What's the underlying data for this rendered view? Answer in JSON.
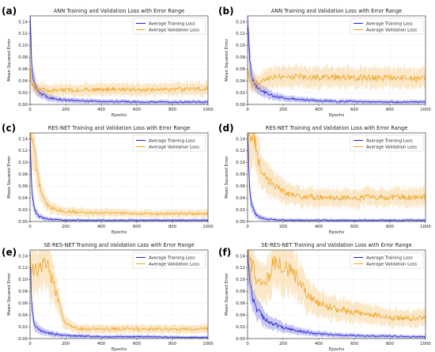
{
  "colors": {
    "training": "#1f1fd6",
    "validation": "#f0a526"
  },
  "chart_data": [
    {
      "type": "line",
      "letter": "(a)",
      "title": "ANN Training and Validation Loss with Error Range",
      "xlabel": "Epochs",
      "ylabel": "Mean Squared Error",
      "xlim": [
        0,
        1000
      ],
      "ylim": [
        0,
        0.15
      ],
      "xticks": [
        "0",
        "200",
        "400",
        "600",
        "800",
        "1000"
      ],
      "yticks": [
        "0.00",
        "0.02",
        "0.04",
        "0.06",
        "0.08",
        "0.10",
        "0.12",
        "0.14"
      ],
      "legend": "top-right",
      "grid": true,
      "error_band": true,
      "series": [
        {
          "name": "Average Training Loss",
          "x": [
            0,
            10,
            25,
            50,
            100,
            150,
            200,
            300,
            400,
            500,
            600,
            700,
            800,
            900,
            1000
          ],
          "values": [
            0.15,
            0.06,
            0.035,
            0.02,
            0.012,
            0.009,
            0.007,
            0.006,
            0.005,
            0.005,
            0.004,
            0.004,
            0.004,
            0.004,
            0.004
          ]
        },
        {
          "name": "Average Validation Loss",
          "x": [
            0,
            10,
            25,
            50,
            100,
            150,
            200,
            300,
            400,
            500,
            600,
            700,
            800,
            900,
            1000
          ],
          "values": [
            0.06,
            0.035,
            0.03,
            0.026,
            0.024,
            0.024,
            0.024,
            0.025,
            0.025,
            0.026,
            0.025,
            0.025,
            0.026,
            0.026,
            0.027
          ]
        }
      ]
    },
    {
      "type": "line",
      "letter": "(b)",
      "title": "ANN Training and Validation Loss with Error Range",
      "xlabel": "Epochs",
      "ylabel": "Mean Squared Error",
      "xlim": [
        0,
        1000
      ],
      "ylim": [
        0,
        0.15
      ],
      "xticks": [
        "0",
        "200",
        "400",
        "600",
        "800",
        "1000"
      ],
      "yticks": [
        "0.00",
        "0.02",
        "0.04",
        "0.06",
        "0.08",
        "0.10",
        "0.12",
        "0.14"
      ],
      "legend": "top-right",
      "grid": true,
      "error_band": true,
      "series": [
        {
          "name": "Average Training Loss",
          "x": [
            0,
            10,
            25,
            50,
            100,
            150,
            200,
            300,
            400,
            500,
            600,
            700,
            800,
            900,
            1000
          ],
          "values": [
            0.15,
            0.08,
            0.045,
            0.03,
            0.02,
            0.014,
            0.011,
            0.008,
            0.006,
            0.005,
            0.005,
            0.004,
            0.004,
            0.004,
            0.004
          ]
        },
        {
          "name": "Average Validation Loss",
          "x": [
            0,
            10,
            25,
            50,
            100,
            150,
            200,
            300,
            400,
            500,
            600,
            700,
            800,
            900,
            1000
          ],
          "values": [
            0.06,
            0.04,
            0.033,
            0.036,
            0.045,
            0.047,
            0.048,
            0.047,
            0.046,
            0.046,
            0.045,
            0.045,
            0.045,
            0.044,
            0.044
          ]
        }
      ]
    },
    {
      "type": "line",
      "letter": "(c)",
      "title": "RES-NET Training and Validation Loss with Error Range",
      "xlabel": "Epochs",
      "ylabel": "Mean Squared Error",
      "xlim": [
        0,
        1000
      ],
      "ylim": [
        0,
        0.15
      ],
      "xticks": [
        "0",
        "200",
        "400",
        "600",
        "800",
        "1000"
      ],
      "yticks": [
        "0.00",
        "0.02",
        "0.04",
        "0.06",
        "0.08",
        "0.10",
        "0.12",
        "0.14"
      ],
      "legend": "top-right",
      "grid": true,
      "error_band": true,
      "series": [
        {
          "name": "Average Training Loss",
          "x": [
            0,
            10,
            25,
            50,
            100,
            150,
            200,
            300,
            400,
            500,
            600,
            700,
            800,
            900,
            1000
          ],
          "values": [
            0.15,
            0.05,
            0.02,
            0.008,
            0.004,
            0.003,
            0.002,
            0.002,
            0.002,
            0.002,
            0.002,
            0.002,
            0.002,
            0.002,
            0.002
          ]
        },
        {
          "name": "Average Validation Loss",
          "x": [
            0,
            10,
            25,
            40,
            60,
            80,
            100,
            150,
            200,
            300,
            400,
            500,
            600,
            700,
            800,
            900,
            1000
          ],
          "values": [
            0.15,
            0.15,
            0.12,
            0.08,
            0.05,
            0.035,
            0.026,
            0.02,
            0.017,
            0.015,
            0.014,
            0.014,
            0.013,
            0.013,
            0.013,
            0.013,
            0.013
          ]
        }
      ]
    },
    {
      "type": "line",
      "letter": "(d)",
      "title": "RES-NET Training and Validation Loss with Error Range",
      "xlabel": "Epochs",
      "ylabel": "Mean Squared Error",
      "xlim": [
        0,
        1000
      ],
      "ylim": [
        0,
        0.15
      ],
      "xticks": [
        "0",
        "200",
        "400",
        "600",
        "800",
        "1000"
      ],
      "yticks": [
        "0.00",
        "0.02",
        "0.04",
        "0.06",
        "0.08",
        "0.10",
        "0.12",
        "0.14"
      ],
      "legend": "top-right",
      "grid": true,
      "error_band": true,
      "series": [
        {
          "name": "Average Training Loss",
          "x": [
            0,
            10,
            25,
            50,
            100,
            150,
            200,
            300,
            400,
            500,
            600,
            700,
            800,
            900,
            1000
          ],
          "values": [
            0.15,
            0.06,
            0.025,
            0.01,
            0.004,
            0.003,
            0.002,
            0.002,
            0.002,
            0.002,
            0.002,
            0.002,
            0.002,
            0.002,
            0.002
          ]
        },
        {
          "name": "Average Validation Loss",
          "x": [
            0,
            20,
            40,
            60,
            80,
            100,
            150,
            200,
            250,
            300,
            400,
            500,
            600,
            700,
            800,
            900,
            1000
          ],
          "values": [
            0.15,
            0.15,
            0.14,
            0.1,
            0.085,
            0.075,
            0.06,
            0.05,
            0.045,
            0.042,
            0.041,
            0.04,
            0.04,
            0.041,
            0.041,
            0.041,
            0.042
          ]
        }
      ]
    },
    {
      "type": "line",
      "letter": "(e)",
      "title": "SE-RES-NET Training and Validation Loss with Error Range",
      "xlabel": "Epochs",
      "ylabel": "Mean Squared Error",
      "xlim": [
        0,
        1000
      ],
      "ylim": [
        0,
        0.15
      ],
      "xticks": [
        "0",
        "200",
        "400",
        "600",
        "800",
        "1000"
      ],
      "yticks": [
        "0.00",
        "0.02",
        "0.04",
        "0.06",
        "0.08",
        "0.10",
        "0.12",
        "0.14"
      ],
      "legend": "top-right",
      "grid": true,
      "error_band": true,
      "series": [
        {
          "name": "Average Training Loss",
          "x": [
            0,
            10,
            25,
            50,
            100,
            150,
            200,
            300,
            400,
            500,
            600,
            700,
            800,
            900,
            1000
          ],
          "values": [
            0.15,
            0.05,
            0.025,
            0.015,
            0.009,
            0.007,
            0.005,
            0.004,
            0.003,
            0.003,
            0.003,
            0.003,
            0.002,
            0.002,
            0.002
          ]
        },
        {
          "name": "Average Validation Loss",
          "x": [
            0,
            10,
            25,
            50,
            75,
            100,
            125,
            150,
            175,
            200,
            250,
            300,
            400,
            500,
            600,
            700,
            800,
            900,
            1000
          ],
          "values": [
            0.15,
            0.12,
            0.12,
            0.115,
            0.125,
            0.12,
            0.1,
            0.075,
            0.045,
            0.025,
            0.018,
            0.016,
            0.016,
            0.016,
            0.016,
            0.016,
            0.016,
            0.016,
            0.016
          ]
        }
      ]
    },
    {
      "type": "line",
      "letter": "(f)",
      "title": "SE-RES-NET Training and Validation Loss with Error Range",
      "xlabel": "Epochs",
      "ylabel": "Mean Squared Error",
      "xlim": [
        0,
        1000
      ],
      "ylim": [
        0,
        0.15
      ],
      "xticks": [
        "0",
        "200",
        "400",
        "600",
        "800",
        "1000"
      ],
      "yticks": [
        "0.00",
        "0.02",
        "0.04",
        "0.06",
        "0.08",
        "0.10",
        "0.12",
        "0.14"
      ],
      "legend": "top-right",
      "grid": true,
      "error_band": true,
      "series": [
        {
          "name": "Average Training Loss",
          "x": [
            0,
            10,
            25,
            50,
            100,
            150,
            200,
            300,
            400,
            500,
            600,
            700,
            800,
            900,
            1000
          ],
          "values": [
            0.15,
            0.1,
            0.07,
            0.05,
            0.032,
            0.025,
            0.018,
            0.012,
            0.008,
            0.006,
            0.005,
            0.004,
            0.004,
            0.003,
            0.003
          ]
        },
        {
          "name": "Average Validation Loss",
          "x": [
            0,
            50,
            100,
            125,
            150,
            200,
            250,
            300,
            350,
            400,
            500,
            600,
            700,
            800,
            900,
            1000
          ],
          "values": [
            0.15,
            0.1,
            0.095,
            0.11,
            0.13,
            0.12,
            0.115,
            0.09,
            0.07,
            0.06,
            0.05,
            0.045,
            0.04,
            0.035,
            0.034,
            0.034
          ]
        }
      ]
    }
  ]
}
